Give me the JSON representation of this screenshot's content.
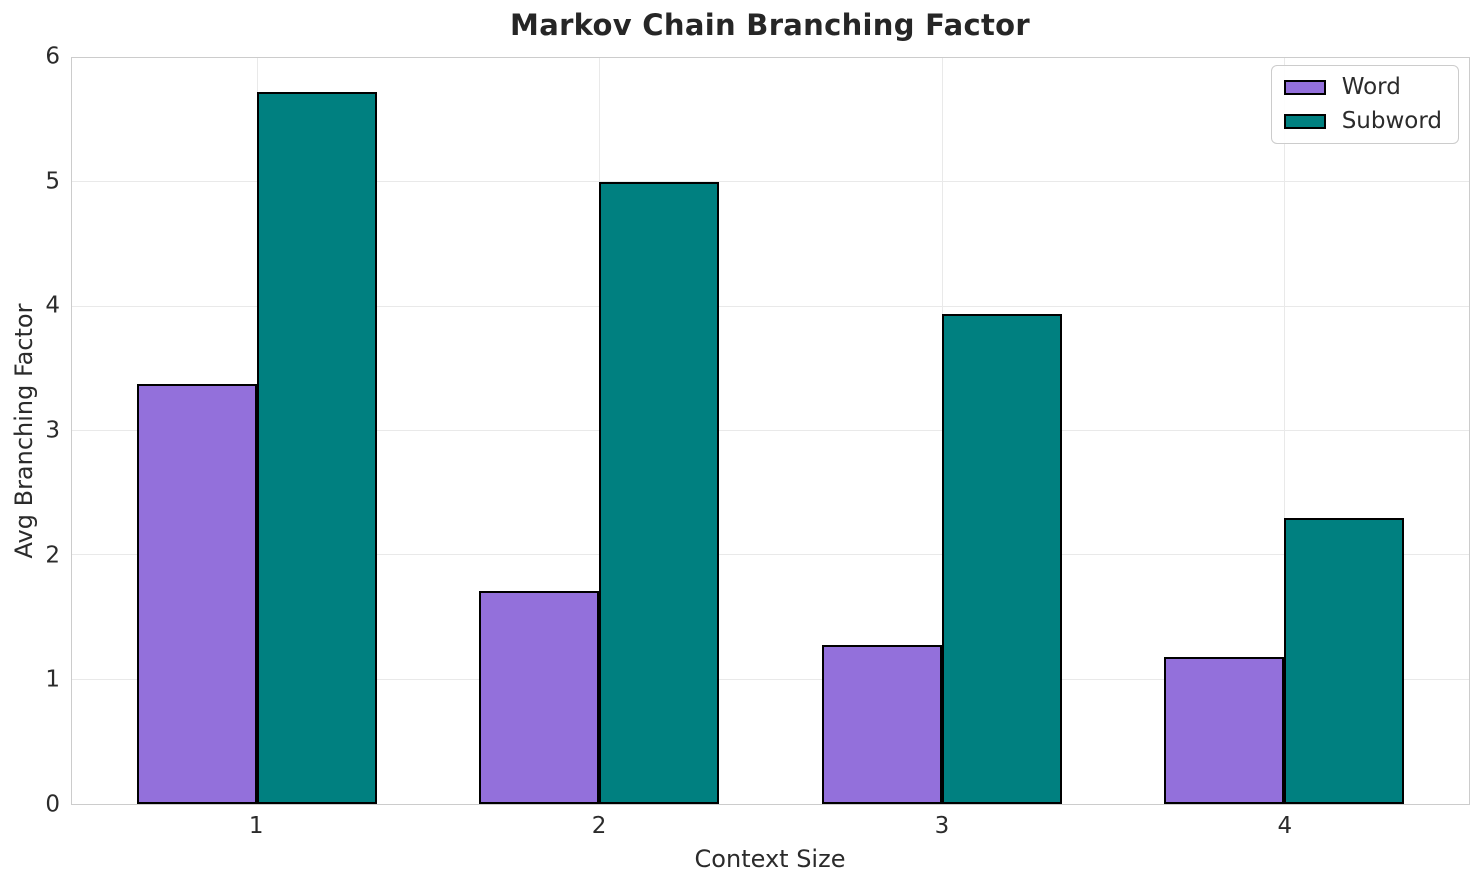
{
  "chart_data": {
    "type": "bar",
    "title": "Markov Chain Branching Factor",
    "xlabel": "Context Size",
    "ylabel": "Avg Branching Factor",
    "categories": [
      "1",
      "2",
      "3",
      "4"
    ],
    "x_positions": [
      1,
      2,
      3,
      4
    ],
    "series": [
      {
        "name": "Word",
        "color": "#9370DB",
        "values": [
          3.38,
          1.71,
          1.28,
          1.18
        ]
      },
      {
        "name": "Subword",
        "color": "#008080",
        "values": [
          5.73,
          5.0,
          3.94,
          2.3
        ]
      }
    ],
    "ylim": [
      0,
      6
    ],
    "yticks": [
      0,
      1,
      2,
      3,
      4,
      5,
      6
    ],
    "xlim": [
      0.46,
      4.54
    ],
    "bar_width": 0.35,
    "bar_edge_color": "#000000",
    "grid": true,
    "legend_position": "upper right"
  },
  "style": {
    "background": "#ffffff",
    "grid_color": "#e9e9e9",
    "spine_color": "#cccccc",
    "text_color": "#2b2b2b"
  }
}
